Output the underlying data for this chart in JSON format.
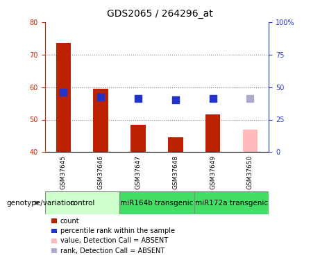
{
  "title": "GDS2065 / 264296_at",
  "samples": [
    "GSM37645",
    "GSM37646",
    "GSM37647",
    "GSM37648",
    "GSM37649",
    "GSM37650"
  ],
  "bar_values": [
    73.5,
    59.5,
    48.5,
    44.5,
    51.5,
    null
  ],
  "bar_color": "#bb2200",
  "absent_bar_values": [
    null,
    null,
    null,
    null,
    null,
    47.0
  ],
  "absent_bar_color": "#ffbbbb",
  "rank_values": [
    58.5,
    57.0,
    56.5,
    56.0,
    56.5,
    null
  ],
  "absent_rank_values": [
    null,
    null,
    null,
    null,
    null,
    56.5
  ],
  "rank_color": "#2233cc",
  "absent_rank_color": "#aaaacc",
  "ylim_left": [
    40,
    80
  ],
  "ylim_right": [
    0,
    100
  ],
  "yticks_left": [
    40,
    50,
    60,
    70,
    80
  ],
  "ytick_labels_left": [
    "40",
    "50",
    "60",
    "70",
    "80"
  ],
  "yticks_right": [
    0,
    25,
    50,
    75,
    100
  ],
  "ytick_labels_right": [
    "0",
    "25",
    "50",
    "75",
    "100%"
  ],
  "bar_width": 0.4,
  "rank_marker_size": 50,
  "grid_yticks": [
    50,
    60,
    70
  ],
  "background_color": "#ffffff",
  "left_tick_color": "#cc2200",
  "right_tick_color": "#2233cc",
  "group_data": [
    {
      "label": "control",
      "start": 0,
      "end": 1,
      "color": "#ccffcc"
    },
    {
      "label": "miR164b transgenic",
      "start": 2,
      "end": 3,
      "color": "#44dd66"
    },
    {
      "label": "miR172a transgenic",
      "start": 4,
      "end": 5,
      "color": "#44dd66"
    }
  ],
  "sample_bg_color": "#cccccc",
  "genotype_label": "genotype/variation",
  "legend_items": [
    {
      "label": "count",
      "color": "#bb2200"
    },
    {
      "label": "percentile rank within the sample",
      "color": "#2233cc"
    },
    {
      "label": "value, Detection Call = ABSENT",
      "color": "#ffbbbb"
    },
    {
      "label": "rank, Detection Call = ABSENT",
      "color": "#aaaacc"
    }
  ],
  "title_fontsize": 10,
  "tick_fontsize": 7,
  "sample_fontsize": 6.5,
  "group_fontsize": 7.5,
  "legend_fontsize": 7,
  "genotype_fontsize": 7.5
}
